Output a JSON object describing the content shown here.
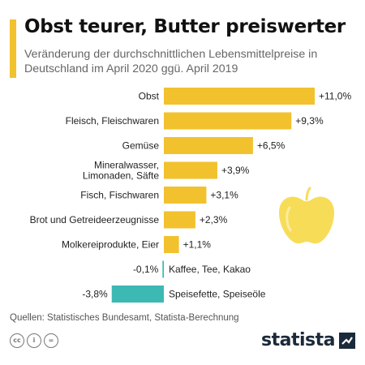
{
  "header": {
    "title": "Obst teurer, Butter preiswerter",
    "subtitle": "Veränderung der durchschnittlichen Lebensmittelpreise in Deutschland im April 2020 ggü. April 2019"
  },
  "colors": {
    "positive": "#f2c12e",
    "negative": "#3db9b4",
    "accent": "#f2c12e",
    "apple": "#f7dc58"
  },
  "chart_data": {
    "type": "bar",
    "orientation": "horizontal",
    "categories": [
      "Obst",
      "Fleisch, Fleischwaren",
      "Gemüse",
      "Mineralwasser, Limonaden, Säfte",
      "Fisch, Fischwaren",
      "Brot und Getreideerzeugnisse",
      "Molkereiprodukte, Eier",
      "Kaffee, Tee, Kakao",
      "Speisefette, Speiseöle"
    ],
    "category_lines": [
      [
        "Obst"
      ],
      [
        "Fleisch, Fleischwaren"
      ],
      [
        "Gemüse"
      ],
      [
        "Mineralwasser,",
        "Limonaden, Säfte"
      ],
      [
        "Fisch, Fischwaren"
      ],
      [
        "Brot und Getreideerzeugnisse"
      ],
      [
        "Molkereiprodukte, Eier"
      ],
      [
        "Kaffee, Tee, Kakao"
      ],
      [
        "Speisefette, Speiseöle"
      ]
    ],
    "values": [
      11.0,
      9.3,
      6.5,
      3.9,
      3.1,
      2.3,
      1.1,
      -0.1,
      -3.8
    ],
    "value_labels": [
      "+11,0%",
      "+9,3%",
      "+6,5%",
      "+3,9%",
      "+3,1%",
      "+2,3%",
      "+1,1%",
      "-0,1%",
      "-3,8%"
    ],
    "unit": "%",
    "xlim": [
      -3.8,
      11.0
    ],
    "grid": false,
    "legend": "none"
  },
  "footer": {
    "source": "Quellen: Statistisches Bundesamt, Statista-Berechnung",
    "license_icons": [
      "cc-icon",
      "by-icon",
      "nd-icon"
    ],
    "license_glyphs": [
      "cc",
      "i",
      "="
    ],
    "logo_text": "statista"
  }
}
